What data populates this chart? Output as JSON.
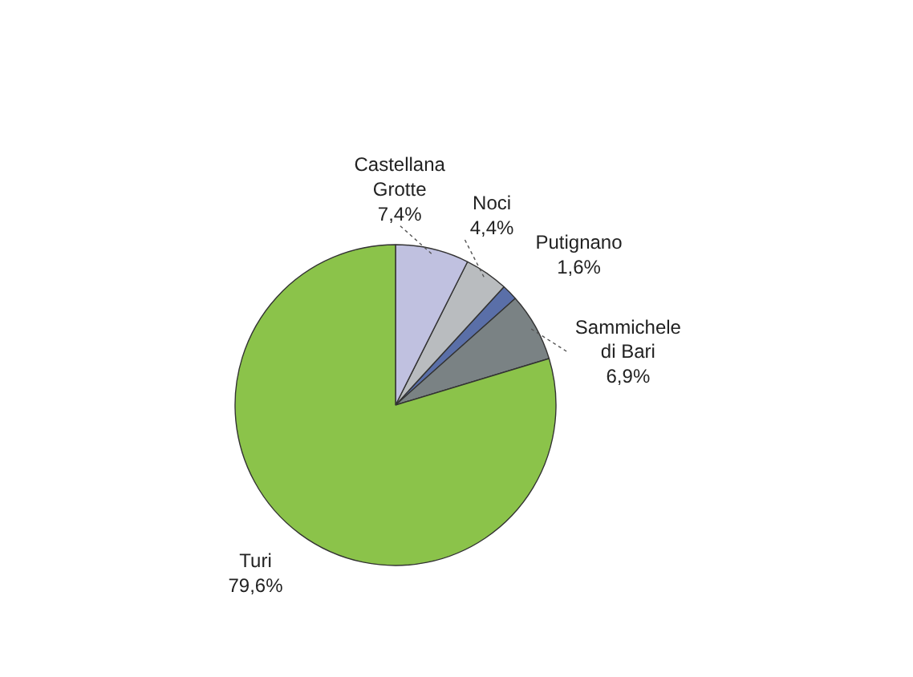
{
  "chart_data": {
    "type": "pie",
    "categories": [
      "Castellana Grotte",
      "Noci",
      "Putignano",
      "Sammichele di Bari",
      "Turi"
    ],
    "values": [
      7.4,
      4.4,
      1.6,
      6.9,
      79.6
    ],
    "value_labels": [
      "7,4%",
      "4,4%",
      "1,6%",
      "6,9%",
      "79,6%"
    ],
    "colors": [
      "#c0c1e0",
      "#b9bcbf",
      "#5a6fa8",
      "#7a8284",
      "#8bc34a"
    ],
    "legend": false
  }
}
